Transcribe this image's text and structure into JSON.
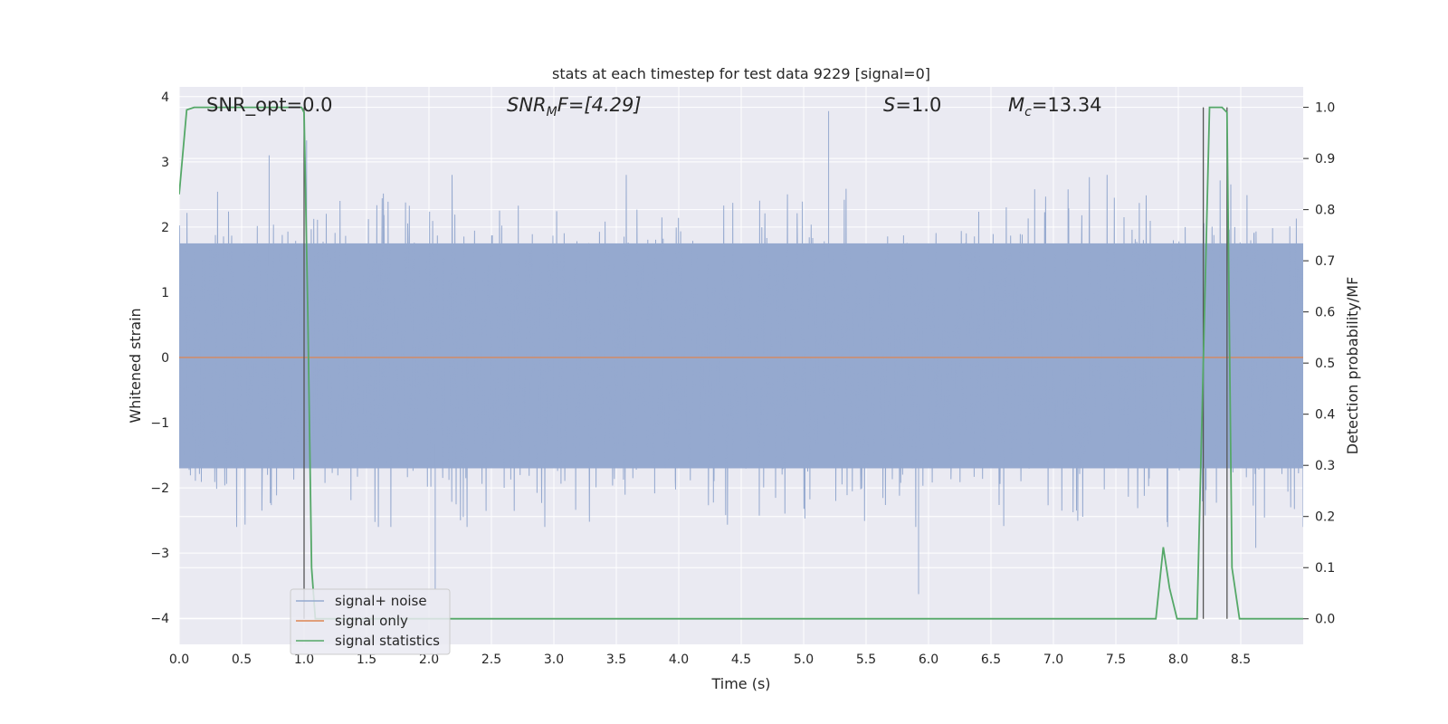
{
  "chart_data": {
    "type": "line",
    "title": "stats at each timestep for test data 9229 [signal=0]",
    "xlabel": "Time (s)",
    "ylabel": "Whitened strain",
    "ylabel_right": "Detection probability/MF",
    "xlim": [
      0.0,
      9.0
    ],
    "ylim": [
      -4.4,
      4.15
    ],
    "ylim_right": [
      -0.05,
      1.04
    ],
    "grid": true,
    "legend_position": "lower-left",
    "x_ticks": [
      "0.0",
      "0.5",
      "1.0",
      "1.5",
      "2.0",
      "2.5",
      "3.0",
      "3.5",
      "4.0",
      "4.5",
      "5.0",
      "5.5",
      "6.0",
      "6.5",
      "7.0",
      "7.5",
      "8.0",
      "8.5"
    ],
    "y_ticks": [
      "4",
      "3",
      "2",
      "1",
      "0",
      "−1",
      "−2",
      "−3",
      "−4"
    ],
    "y_ticks_right": [
      "1.0",
      "0.9",
      "0.8",
      "0.7",
      "0.6",
      "0.5",
      "0.4",
      "0.3",
      "0.2",
      "0.1",
      "0.0"
    ],
    "annotations": {
      "snr_opt": "SNR_opt=0.0",
      "snr_mf_main": "SNR",
      "snr_mf_sub": "M",
      "snr_mf_rest": "F=[4.29]",
      "s_main": "S",
      "s_rest": "=1.0",
      "mc_main": "M",
      "mc_sub": "c",
      "mc_rest": "=13.34"
    },
    "series": [
      {
        "name": "signal+ noise",
        "color": "#95a9cf",
        "axis": "left",
        "noise_band": [
          -1.7,
          1.75
        ],
        "notable_peaks": [
          {
            "x": 1.02,
            "y": 3.33
          },
          {
            "x": 5.2,
            "y": 3.78
          },
          {
            "x": 0.72,
            "y": 3.1
          },
          {
            "x": 5.92,
            "y": -3.63
          },
          {
            "x": 2.05,
            "y": -3.55
          },
          {
            "x": 8.62,
            "y": -2.92
          }
        ]
      },
      {
        "name": "signal only",
        "color": "#dd8452",
        "axis": "left",
        "x": [
          0.0,
          9.0
        ],
        "y": [
          0.0,
          0.0
        ]
      },
      {
        "name": "signal statistics",
        "color": "#55a868",
        "axis": "right",
        "x": [
          0.0,
          0.06,
          0.12,
          0.5,
          0.98,
          1.0,
          1.03,
          1.06,
          1.09,
          2.0,
          5.0,
          7.79,
          7.82,
          7.88,
          7.93,
          7.99,
          8.05,
          8.15,
          8.25,
          8.3,
          8.35,
          8.39,
          8.43,
          8.49,
          9.0
        ],
        "y": [
          0.83,
          0.995,
          1.0,
          1.0,
          1.0,
          0.99,
          0.6,
          0.1,
          0.0,
          0.0,
          0.0,
          0.0,
          0.0,
          0.14,
          0.06,
          0.0,
          0.0,
          0.0,
          1.0,
          1.0,
          1.0,
          0.99,
          0.1,
          0.0,
          0.0
        ]
      }
    ],
    "vertical_markers": [
      1.0,
      8.2,
      8.39
    ]
  }
}
